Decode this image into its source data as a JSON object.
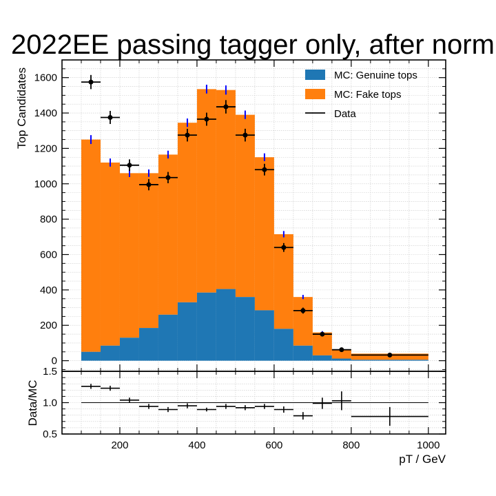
{
  "chart_data": {
    "type": "bar",
    "title": "2022EE passing tagger only, after norm",
    "xlabel": "pT / GeV",
    "ylabel": "Top Candidates",
    "ratio_ylabel": "Data/MC",
    "bin_edges": [
      100,
      150,
      200,
      250,
      300,
      350,
      400,
      450,
      500,
      550,
      600,
      650,
      700,
      750,
      800,
      1000
    ],
    "xlim": [
      50,
      1045
    ],
    "xticks": [
      200,
      400,
      600,
      800,
      1000
    ],
    "ylim": [
      -60,
      1700
    ],
    "yticks": [
      0,
      200,
      400,
      600,
      800,
      1000,
      1200,
      1400,
      1600
    ],
    "ratio_ylim": [
      0.5,
      1.5
    ],
    "ratio_yticks": [
      "0.5",
      "1.0",
      "1.5"
    ],
    "grid": true,
    "legend_position": "top-right",
    "series": [
      {
        "name": "MC: Genuine tops",
        "kind": "stack",
        "color": "#1f77b4",
        "values": [
          50,
          85,
          130,
          185,
          260,
          330,
          385,
          405,
          360,
          285,
          180,
          85,
          30,
          12,
          5
        ]
      },
      {
        "name": "MC: Fake tops",
        "kind": "stack",
        "color": "#ff7f0e",
        "values": [
          1200,
          1035,
          930,
          875,
          905,
          1015,
          1150,
          1125,
          1030,
          865,
          535,
          275,
          130,
          50,
          35
        ]
      },
      {
        "name": "Data",
        "kind": "points",
        "color": "#000000",
        "values": [
          1575,
          1375,
          1105,
          995,
          1035,
          1275,
          1365,
          1435,
          1275,
          1080,
          640,
          283,
          150,
          62,
          32
        ],
        "errors": [
          40,
          37,
          33,
          32,
          32,
          36,
          37,
          38,
          36,
          33,
          25,
          17,
          12,
          8,
          6
        ]
      }
    ],
    "mc_uncertainty": {
      "color": "#0000ff",
      "values": [
        25,
        23,
        22,
        21,
        22,
        24,
        25,
        26,
        24,
        22,
        18,
        12,
        7,
        4,
        3
      ]
    },
    "ratio": {
      "values": [
        1.26,
        1.23,
        1.04,
        0.94,
        0.89,
        0.95,
        0.89,
        0.94,
        0.92,
        0.94,
        0.89,
        0.79,
        0.99,
        1.03,
        0.78
      ],
      "errors": [
        0.04,
        0.04,
        0.04,
        0.04,
        0.04,
        0.04,
        0.03,
        0.04,
        0.04,
        0.04,
        0.05,
        0.06,
        0.09,
        0.15,
        0.15
      ]
    }
  }
}
